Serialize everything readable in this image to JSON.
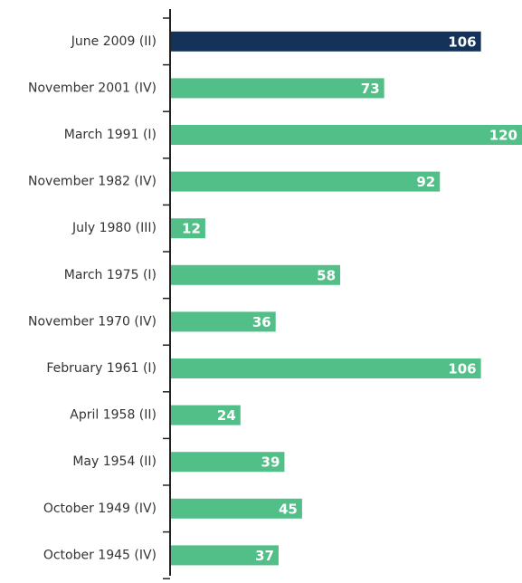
{
  "chart_data": {
    "type": "bar",
    "orientation": "horizontal",
    "categories": [
      "June 2009 (II)",
      "November 2001 (IV)",
      "March 1991 (I)",
      "November 1982 (IV)",
      "July 1980 (III)",
      "March 1975 (I)",
      "November 1970 (IV)",
      "February 1961 (I)",
      "April 1958 (II)",
      "May 1954 (II)",
      "October 1949 (IV)",
      "October 1945 (IV)"
    ],
    "values": [
      106,
      73,
      120,
      92,
      12,
      58,
      36,
      106,
      24,
      39,
      45,
      37
    ],
    "colors": [
      "#14325a",
      "#52bf88",
      "#52bf88",
      "#52bf88",
      "#52bf88",
      "#52bf88",
      "#52bf88",
      "#52bf88",
      "#52bf88",
      "#52bf88",
      "#52bf88",
      "#52bf88"
    ]
  }
}
